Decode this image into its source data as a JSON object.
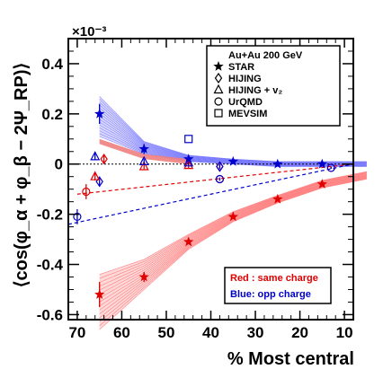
{
  "colors": {
    "same_charge": "#e00000",
    "opp_charge": "#0000cc",
    "same_band": "#ff6666",
    "opp_band": "#6a6aff",
    "hijing_v2_band": "#f08080",
    "axis": "#000000"
  },
  "chart_data": {
    "type": "scatter",
    "title": "",
    "xlabel": "% Most central",
    "ylabel": "⟨cos(φ_α + φ_β − 2Ψ_RP)⟩",
    "y_multiplier": "×10⁻³",
    "xlim": [
      72,
      8
    ],
    "ylim": [
      -0.62,
      0.5
    ],
    "x_ticks": [
      70,
      60,
      50,
      40,
      30,
      20,
      10
    ],
    "y_ticks": [
      -0.6,
      -0.4,
      -0.2,
      0,
      0.2,
      0.4
    ],
    "y_tick_labels": [
      "-0.6",
      "-0.4",
      "-0.2",
      "0",
      "0.2",
      "0.4"
    ],
    "legend": {
      "header": "Au+Au 200 GeV",
      "entries": [
        {
          "marker": "star",
          "label": "STAR"
        },
        {
          "marker": "diamond",
          "label": "HIJING"
        },
        {
          "marker": "triangle",
          "label": "HIJING + v₂"
        },
        {
          "marker": "circle",
          "label": "UrQMD"
        },
        {
          "marker": "square",
          "label": "MEVSIM"
        }
      ],
      "placement": "top-right"
    },
    "charge_note": {
      "red": "Red : same charge",
      "blue": "Blue:  opp charge"
    },
    "series": [
      {
        "group": "same",
        "marker": "star",
        "x": [
          65,
          55,
          45,
          35,
          25,
          15,
          5
        ],
        "y": [
          -0.52,
          -0.45,
          -0.31,
          -0.21,
          -0.14,
          -0.08,
          -0.04
        ],
        "err": [
          0.05,
          0.02,
          0.01,
          0.008,
          0.006,
          0.006,
          0.006
        ]
      },
      {
        "group": "opp",
        "marker": "star",
        "x": [
          65,
          55,
          45,
          35,
          25,
          15,
          5
        ],
        "y": [
          0.2,
          0.06,
          0.02,
          0.01,
          0.0,
          0.0,
          0.0
        ],
        "err": [
          0.04,
          0.02,
          0.01,
          0.008,
          0.006,
          0.006,
          0.006
        ]
      },
      {
        "group": "same",
        "marker": "circle",
        "x": [
          68,
          38,
          13
        ],
        "y": [
          -0.11,
          -0.06,
          -0.015
        ],
        "err": [
          0.03,
          0.006,
          0.004
        ]
      },
      {
        "group": "opp",
        "marker": "circle",
        "x": [
          70,
          38,
          13
        ],
        "y": [
          -0.21,
          -0.06,
          -0.015
        ],
        "err": [
          0.03,
          0.006,
          0.004
        ]
      },
      {
        "group": "same",
        "marker": "diamond",
        "x": [
          64,
          38
        ],
        "y": [
          0.02,
          -0.01
        ],
        "err": [
          0.02,
          0.01
        ]
      },
      {
        "group": "opp",
        "marker": "diamond",
        "x": [
          65,
          38
        ],
        "y": [
          -0.07,
          -0.01
        ],
        "err": [
          0.02,
          0.01
        ]
      },
      {
        "group": "same",
        "marker": "triangle",
        "x": [
          66,
          55,
          45
        ],
        "y": [
          -0.05,
          -0.01,
          -0.005
        ],
        "err": [
          0.015,
          0.01,
          0.01
        ]
      },
      {
        "group": "opp",
        "marker": "triangle",
        "x": [
          66,
          55,
          45
        ],
        "y": [
          0.03,
          0.01,
          0.005
        ],
        "err": [
          0.015,
          0.01,
          0.01
        ]
      },
      {
        "group": "opp",
        "marker": "square",
        "x": [
          45
        ],
        "y": [
          0.1
        ],
        "err": [
          0
        ]
      }
    ],
    "bands": [
      {
        "group": "same",
        "x": [
          65,
          55,
          45,
          35,
          25,
          15,
          5
        ],
        "low": [
          -0.66,
          -0.5,
          -0.34,
          -0.23,
          -0.155,
          -0.095,
          -0.06
        ],
        "high": [
          -0.44,
          -0.38,
          -0.28,
          -0.19,
          -0.125,
          -0.065,
          -0.03
        ]
      },
      {
        "group": "opp",
        "x": [
          65,
          55,
          45,
          35,
          25,
          15,
          5
        ],
        "low": [
          0.11,
          0.04,
          0.01,
          0.0,
          -0.01,
          -0.01,
          -0.01
        ],
        "high": [
          0.27,
          0.09,
          0.035,
          0.02,
          0.01,
          0.01,
          0.01
        ]
      },
      {
        "group": "hijing_v2",
        "x": [
          65,
          55,
          45
        ],
        "low": [
          0.08,
          0.02,
          0.0
        ],
        "high": [
          0.1,
          0.04,
          0.02
        ]
      }
    ],
    "trend_lines": [
      {
        "group": "same",
        "x": [
          70,
          8
        ],
        "y": [
          -0.12,
          0.0
        ]
      },
      {
        "group": "opp",
        "x": [
          72,
          8
        ],
        "y": [
          -0.24,
          0.0
        ]
      }
    ]
  }
}
